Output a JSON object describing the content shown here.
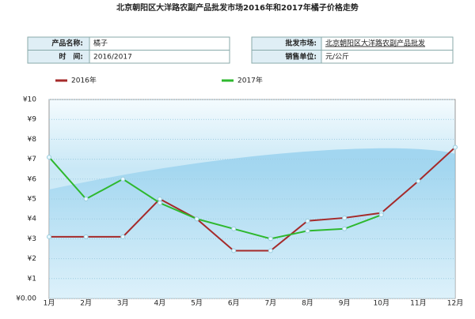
{
  "chart_data": {
    "type": "line",
    "title": "北京朝阳区大洋路农副产品批发市场2016年和2017年橘子价格走势",
    "info": {
      "product_label": "产品名称:",
      "product": "橘子",
      "time_label": "时　间:",
      "time": "2016/2017",
      "market_label": "批发市场:",
      "market": "北京朝阳区大洋路农副产品批发",
      "unit_label": "销售单位:",
      "unit": "元/公斤"
    },
    "categories": [
      "1月",
      "2月",
      "3月",
      "4月",
      "5月",
      "6月",
      "7月",
      "8月",
      "9月",
      "10月",
      "11月",
      "12月"
    ],
    "series": [
      {
        "name": "2016年",
        "color": "#a52a2a",
        "values": [
          3.1,
          3.1,
          3.1,
          5.0,
          4.0,
          2.4,
          2.4,
          3.9,
          4.05,
          4.3,
          5.9,
          7.6
        ]
      },
      {
        "name": "2017年",
        "color": "#2eb82e",
        "values": [
          7.1,
          5.0,
          6.0,
          4.8,
          4.0,
          3.5,
          3.0,
          3.4,
          3.5,
          4.2,
          null,
          null
        ]
      }
    ],
    "ylim": [
      0,
      10
    ],
    "yticks": [
      {
        "value": 0,
        "label": "¥0.00"
      },
      {
        "value": 1,
        "label": "¥1"
      },
      {
        "value": 2,
        "label": "¥2"
      },
      {
        "value": 3,
        "label": "¥3"
      },
      {
        "value": 4,
        "label": "¥4"
      },
      {
        "value": 5,
        "label": "¥5"
      },
      {
        "value": 6,
        "label": "¥6"
      },
      {
        "value": 7,
        "label": "¥7"
      },
      {
        "value": 8,
        "label": "¥8"
      },
      {
        "value": 9,
        "label": "¥9"
      },
      {
        "value": 10,
        "label": "¥10"
      }
    ],
    "grid": true
  }
}
